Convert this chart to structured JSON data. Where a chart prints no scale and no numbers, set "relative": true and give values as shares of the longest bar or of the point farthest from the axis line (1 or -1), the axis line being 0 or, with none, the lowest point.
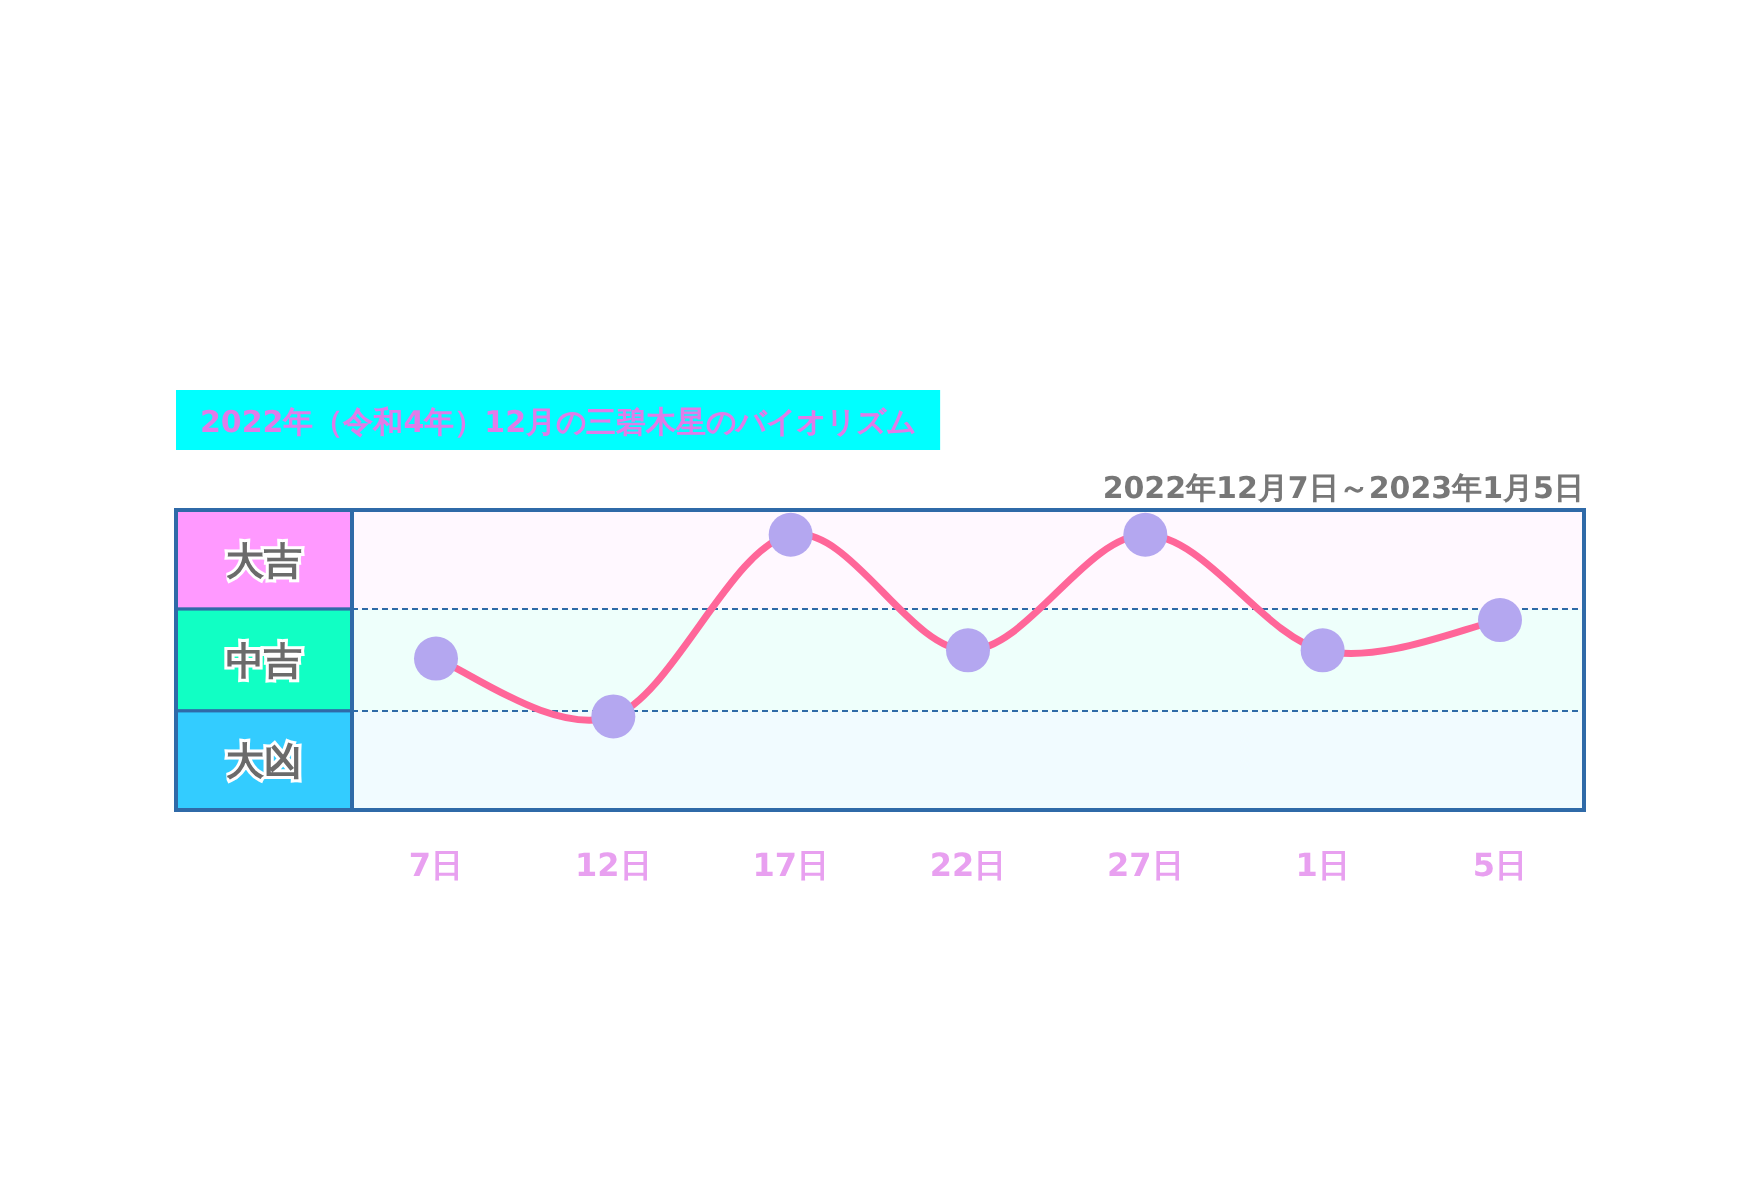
{
  "chart_data": {
    "type": "line",
    "title": "2022年（令和4年）12月の三碧木星のバイオリズム",
    "subtitle": "2022年12月7日～2023年1月5日",
    "categories": [
      "7日",
      "12日",
      "17日",
      "22日",
      "27日",
      "1日",
      "5日"
    ],
    "series": [
      {
        "color": "#ff6699",
        "colors": [
          "#b4a7f0",
          "#b4a7f0",
          "#b4a7f0",
          "#b4a7f0",
          "#b4a7f0",
          "#b4a7f0",
          "#b4a7f0"
        ],
        "values": [
          0.55,
          0.34,
          1,
          0.58,
          1,
          0.58,
          0.69
        ]
      }
    ],
    "relative": true,
    "marker": "circle",
    "line_style": "solid",
    "ref_lines": [
      {
        "axis": "y",
        "value": 0.73,
        "color": "#2f6aa8",
        "line_style": "dashed"
      },
      {
        "axis": "y",
        "value": 0.36,
        "color": "#2f6aa8",
        "line_style": "dashed"
      }
    ],
    "bands": [
      {
        "axis": "y",
        "from": 0.73,
        "to": 1.09,
        "label": "大吉",
        "color": "#ff99ff"
      },
      {
        "axis": "y",
        "from": 0.36,
        "to": 0.73,
        "label": "中吉",
        "color": "#11ffc4"
      },
      {
        "axis": "y",
        "from": 0,
        "to": 0.36,
        "label": "大凶",
        "color": "#33ccff"
      }
    ]
  }
}
